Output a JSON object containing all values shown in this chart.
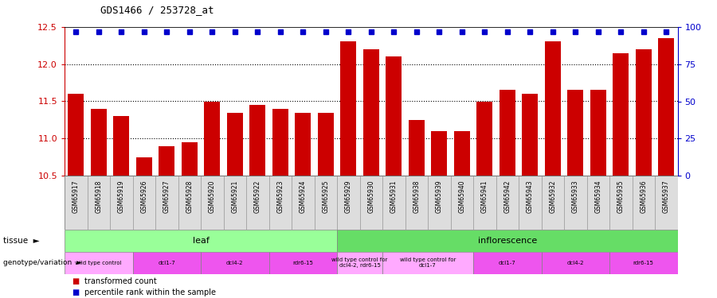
{
  "title": "GDS1466 / 253728_at",
  "samples": [
    "GSM65917",
    "GSM65918",
    "GSM65919",
    "GSM65926",
    "GSM65927",
    "GSM65928",
    "GSM65920",
    "GSM65921",
    "GSM65922",
    "GSM65923",
    "GSM65924",
    "GSM65925",
    "GSM65929",
    "GSM65930",
    "GSM65931",
    "GSM65938",
    "GSM65939",
    "GSM65940",
    "GSM65941",
    "GSM65942",
    "GSM65943",
    "GSM65932",
    "GSM65933",
    "GSM65934",
    "GSM65935",
    "GSM65936",
    "GSM65937"
  ],
  "bar_values": [
    11.6,
    11.4,
    11.3,
    10.75,
    10.9,
    10.95,
    11.5,
    11.35,
    11.45,
    11.4,
    11.35,
    11.35,
    12.3,
    12.2,
    12.1,
    11.25,
    11.1,
    11.1,
    11.5,
    11.65,
    11.6,
    12.3,
    11.65,
    11.65,
    12.15,
    12.2,
    12.35
  ],
  "percentile_show": [
    true,
    true,
    true,
    true,
    true,
    true,
    true,
    true,
    true,
    true,
    true,
    true,
    true,
    true,
    true,
    true,
    true,
    true,
    true,
    true,
    true,
    true,
    true,
    true,
    true,
    true,
    true
  ],
  "bar_color": "#cc0000",
  "percentile_color": "#0000cc",
  "ylim_left": [
    10.5,
    12.5
  ],
  "ylim_right": [
    0,
    100
  ],
  "yticks_left": [
    10.5,
    11.0,
    11.5,
    12.0,
    12.5
  ],
  "yticks_right": [
    0,
    25,
    50,
    75,
    100
  ],
  "grid_values": [
    11.0,
    11.5,
    12.0
  ],
  "tissue_groups": [
    {
      "label": "leaf",
      "start": 0,
      "end": 11,
      "color": "#99ff99"
    },
    {
      "label": "inflorescence",
      "start": 12,
      "end": 26,
      "color": "#66dd66"
    }
  ],
  "genotype_groups": [
    {
      "label": "wild type control",
      "start": 0,
      "end": 2,
      "color": "#ffaaff"
    },
    {
      "label": "dcl1-7",
      "start": 3,
      "end": 5,
      "color": "#ee55ee"
    },
    {
      "label": "dcl4-2",
      "start": 6,
      "end": 8,
      "color": "#ee55ee"
    },
    {
      "label": "rdr6-15",
      "start": 9,
      "end": 11,
      "color": "#ee55ee"
    },
    {
      "label": "wild type control for\ndcl4-2, rdr6-15",
      "start": 12,
      "end": 13,
      "color": "#ffaaff"
    },
    {
      "label": "wild type control for\ndcl1-7",
      "start": 14,
      "end": 17,
      "color": "#ffaaff"
    },
    {
      "label": "dcl1-7",
      "start": 18,
      "end": 20,
      "color": "#ee55ee"
    },
    {
      "label": "dcl4-2",
      "start": 21,
      "end": 23,
      "color": "#ee55ee"
    },
    {
      "label": "rdr6-15",
      "start": 24,
      "end": 26,
      "color": "#ee55ee"
    }
  ],
  "legend_items": [
    {
      "label": "transformed count",
      "color": "#cc0000"
    },
    {
      "label": "percentile rank within the sample",
      "color": "#0000cc"
    }
  ],
  "tissue_row_label": "tissue",
  "genotype_row_label": "genotype/variation",
  "fig_width": 9.0,
  "fig_height": 3.75,
  "dpi": 100
}
